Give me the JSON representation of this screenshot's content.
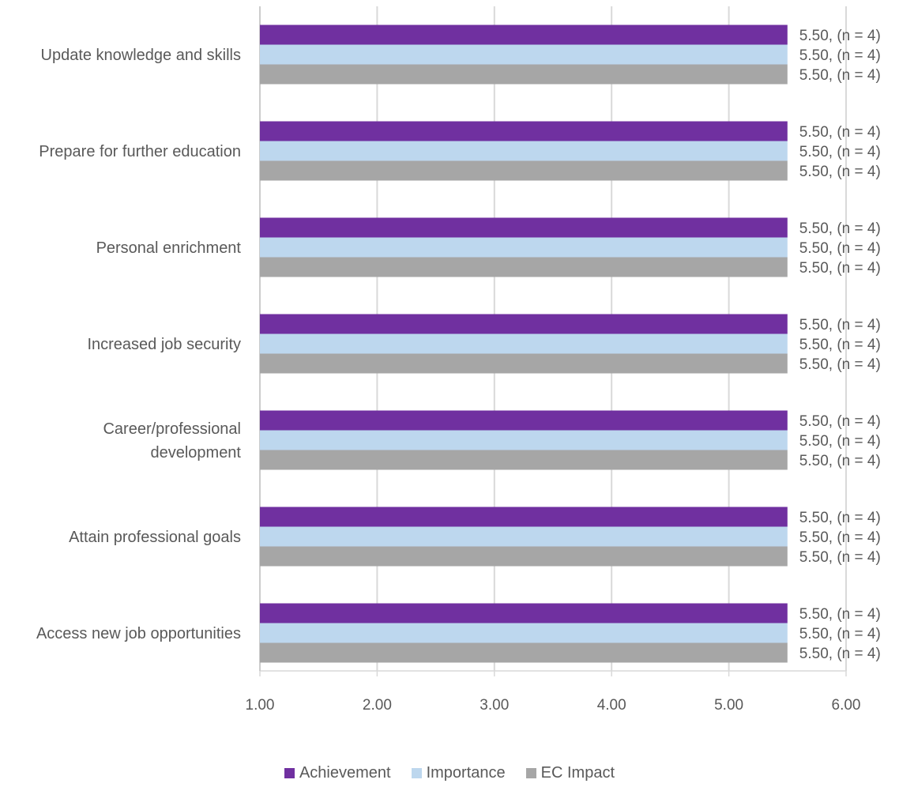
{
  "chart_data": {
    "type": "bar",
    "orientation": "horizontal",
    "categories": [
      "Update knowledge and skills",
      "Prepare for further education",
      "Personal enrichment",
      "Increased job security",
      "Career/professional development",
      "Attain professional goals",
      "Access new job opportunities"
    ],
    "series": [
      {
        "name": "Achievement",
        "color": "#7030a0",
        "values": [
          5.5,
          5.5,
          5.5,
          5.5,
          5.5,
          5.5,
          5.5
        ],
        "labels": [
          "5.50, (n = 4)",
          "5.50, (n = 4)",
          "5.50, (n = 4)",
          "5.50, (n = 4)",
          "5.50, (n = 4)",
          "5.50, (n = 4)",
          "5.50, (n = 4)"
        ]
      },
      {
        "name": "Importance",
        "color": "#bdd7ee",
        "values": [
          5.5,
          5.5,
          5.5,
          5.5,
          5.5,
          5.5,
          5.5
        ],
        "labels": [
          "5.50, (n = 4)",
          "5.50, (n = 4)",
          "5.50, (n = 4)",
          "5.50, (n = 4)",
          "5.50, (n = 4)",
          "5.50, (n = 4)",
          "5.50, (n = 4)"
        ]
      },
      {
        "name": "EC Impact",
        "color": "#a6a6a6",
        "values": [
          5.5,
          5.5,
          5.5,
          5.5,
          5.5,
          5.5,
          5.5
        ],
        "labels": [
          "5.50, (n = 4)",
          "5.50, (n = 4)",
          "5.50, (n = 4)",
          "5.50, (n = 4)",
          "5.50, (n = 4)",
          "5.50, (n = 4)",
          "5.50, (n = 4)"
        ]
      }
    ],
    "xlim": [
      1,
      6
    ],
    "xticks": [
      "1.00",
      "2.00",
      "3.00",
      "4.00",
      "5.00",
      "6.00"
    ],
    "grid": true,
    "legend_position": "bottom",
    "title": "",
    "xlabel": "",
    "ylabel": ""
  }
}
